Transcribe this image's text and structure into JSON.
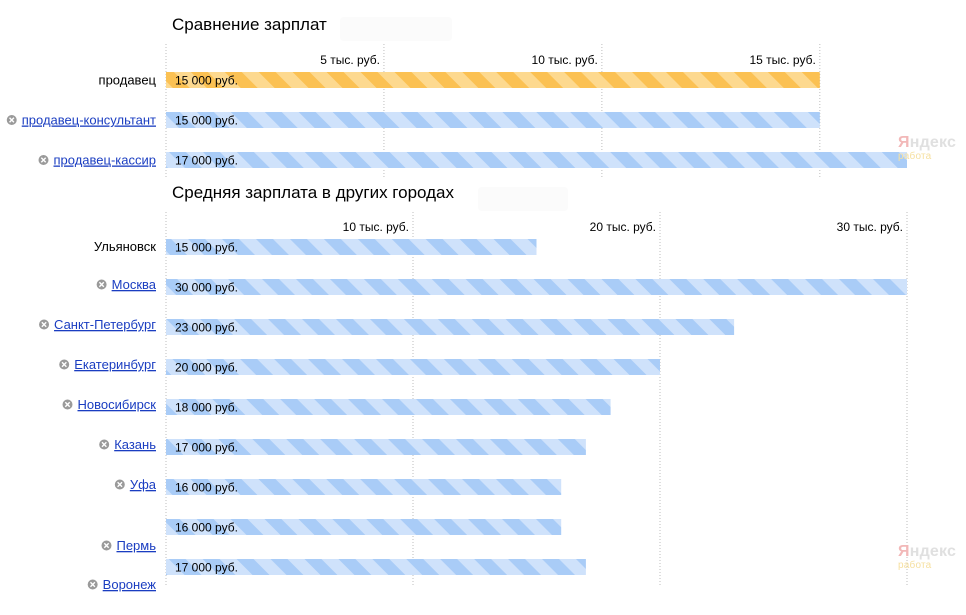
{
  "colors": {
    "blue_bar": "#a9ccf7",
    "blue_stripe": "#cfe2fb",
    "orange_bar": "#fbc153",
    "orange_stripe": "#fdd98f",
    "link": "#1a3dc1",
    "grid": "#bdbdbd"
  },
  "watermark": {
    "brand": "Яндекс",
    "brand_first": "Я",
    "brand_rest": "ндекс",
    "sub": "работа"
  },
  "chart_data": [
    {
      "type": "bar",
      "orientation": "horizontal",
      "title": "Сравнение зарплат",
      "unit": "руб.",
      "xlim": [
        0,
        17000
      ],
      "ticks": [
        {
          "value": 5000,
          "label": "5 тыс. руб."
        },
        {
          "value": 10000,
          "label": "10 тыс. руб."
        },
        {
          "value": 15000,
          "label": "15 тыс. руб."
        }
      ],
      "grid": true,
      "bars": [
        {
          "category": "продавец",
          "value": 15000,
          "label": "15 000 руб.",
          "color": "orange",
          "link": false,
          "removable": false
        },
        {
          "category": "продавец-консультант",
          "value": 15000,
          "label": "15 000 руб.",
          "color": "blue",
          "link": true,
          "removable": true
        },
        {
          "category": "продавец-кассир",
          "value": 17000,
          "label": "17 000 руб.",
          "color": "blue",
          "link": true,
          "removable": true
        }
      ]
    },
    {
      "type": "bar",
      "orientation": "horizontal",
      "title": "Средняя зарплата в других городах",
      "unit": "руб.",
      "xlim": [
        0,
        30000
      ],
      "ticks": [
        {
          "value": 10000,
          "label": "10 тыс. руб."
        },
        {
          "value": 20000,
          "label": "20 тыс. руб."
        },
        {
          "value": 30000,
          "label": "30 тыс. руб."
        }
      ],
      "grid": true,
      "bars": [
        {
          "category": "Ульяновск",
          "value": 15000,
          "label": "15 000 руб.",
          "color": "blue",
          "link": false,
          "removable": false
        },
        {
          "category": "Москва",
          "value": 30000,
          "label": "30 000 руб.",
          "color": "blue",
          "link": true,
          "removable": true
        },
        {
          "category": "Санкт-Петербург",
          "value": 23000,
          "label": "23 000 руб.",
          "color": "blue",
          "link": true,
          "removable": true
        },
        {
          "category": "Екатеринбург",
          "value": 20000,
          "label": "20 000 руб.",
          "color": "blue",
          "link": true,
          "removable": true
        },
        {
          "category": "Новосибирск",
          "value": 18000,
          "label": "18 000 руб.",
          "color": "blue",
          "link": true,
          "removable": true
        },
        {
          "category": "Казань",
          "value": 17000,
          "label": "17 000 руб.",
          "color": "blue",
          "link": true,
          "removable": true
        },
        {
          "category": "Уфа",
          "value": 16000,
          "label": "16 000 руб.",
          "color": "blue",
          "link": true,
          "removable": true
        },
        {
          "category": "",
          "value": 16000,
          "label": "16 000 руб.",
          "color": "blue",
          "link": false,
          "removable": false
        },
        {
          "category": "Пермь",
          "value": 17000,
          "label": "17 000 руб.",
          "color": "blue",
          "link": true,
          "removable": true
        },
        {
          "category": "Воронеж",
          "value": null,
          "label": "",
          "color": "blue",
          "link": true,
          "removable": true
        }
      ]
    }
  ]
}
